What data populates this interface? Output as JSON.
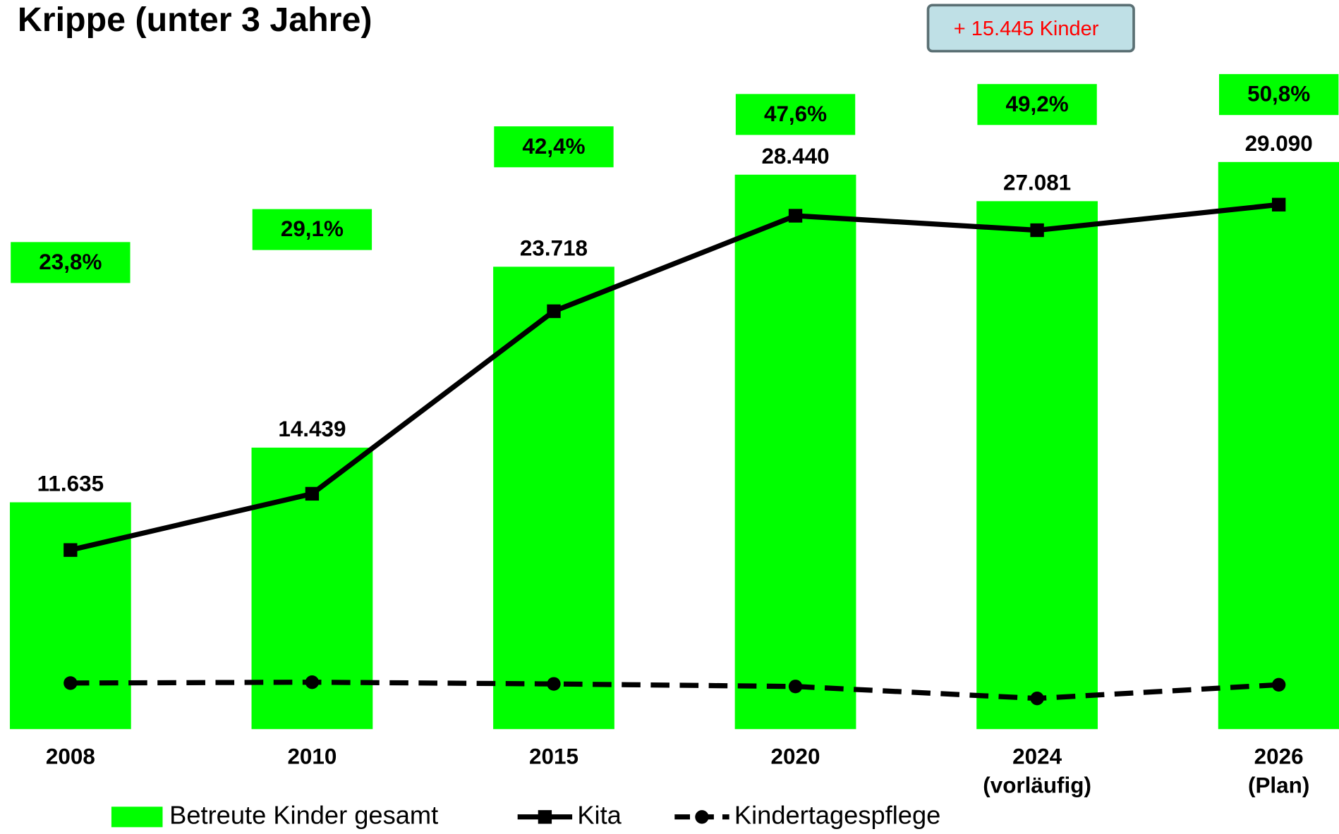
{
  "chart_data": {
    "type": "bar",
    "title": "Krippe (unter 3 Jahre)",
    "annotation": "+ 15.445 Kinder",
    "categories": [
      "2008",
      "2010",
      "2015",
      "2020",
      "2024\n(vorläufig)",
      "2026\n(Plan)"
    ],
    "ylim": [
      0,
      37400
    ],
    "y2lim": [
      -51.2,
      66
    ],
    "series": [
      {
        "name": "Betreute Kinder gesamt",
        "type": "bar",
        "color": "#00ff00",
        "values": [
          11635,
          14439,
          23718,
          28440,
          27081,
          29090
        ],
        "value_labels": [
          "11.635",
          "14.439",
          "23.718",
          "28.440",
          "27.081",
          "29.090"
        ]
      },
      {
        "name": "Kita",
        "type": "line",
        "color": "#000000",
        "marker": "square",
        "values": [
          9186,
          12073,
          21435,
          26334,
          25591,
          26903
        ]
      },
      {
        "name": "Kindertagespflege",
        "type": "line",
        "color": "#000000",
        "marker": "circle",
        "dashed": true,
        "values": [
          2362,
          2406,
          2318,
          2187,
          1575,
          2275
        ]
      },
      {
        "type": "label-box",
        "axis": "y2",
        "color": "#00ff00",
        "values": [
          23.8,
          29.1,
          42.4,
          47.6,
          49.2,
          50.8
        ],
        "value_labels": [
          "23,8%",
          "29,1%",
          "42,4%",
          "47,6%",
          "49,2%",
          "50,8%"
        ]
      }
    ]
  }
}
